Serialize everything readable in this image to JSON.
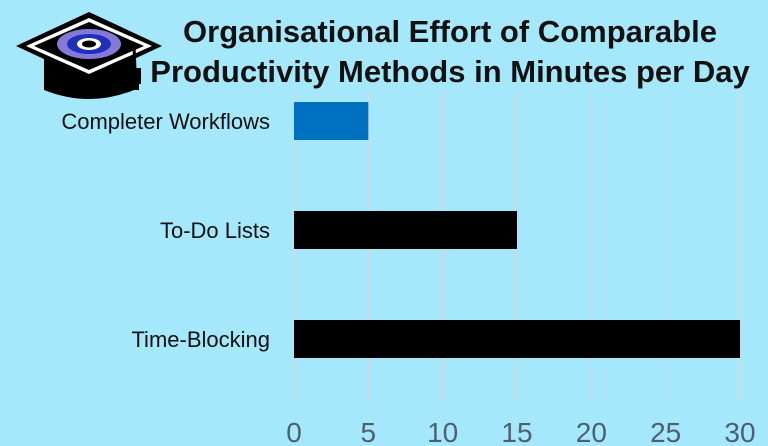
{
  "chart_data": {
    "type": "bar",
    "orientation": "horizontal",
    "title": "Organisational Effort of Comparable Productivity Methods in Minutes per Day",
    "title_lines": [
      "Organisational Effort of Comparable",
      "Productivity Methods in Minutes per Day"
    ],
    "categories": [
      "Completer Workflows",
      "To-Do Lists",
      "Time-Blocking"
    ],
    "values": [
      5,
      15,
      30
    ],
    "bar_colors": [
      "#0070c0",
      "#000000",
      "#000000"
    ],
    "xlim": [
      0,
      30
    ],
    "x_ticks": [
      0,
      5,
      10,
      15,
      20,
      25,
      30
    ],
    "tick_label_color": "#4d5f72",
    "grid": true,
    "gridline_color": "#d2d8de",
    "xlabel": "",
    "ylabel": ""
  },
  "logo": {
    "icon": "graduation-cap-icon"
  }
}
